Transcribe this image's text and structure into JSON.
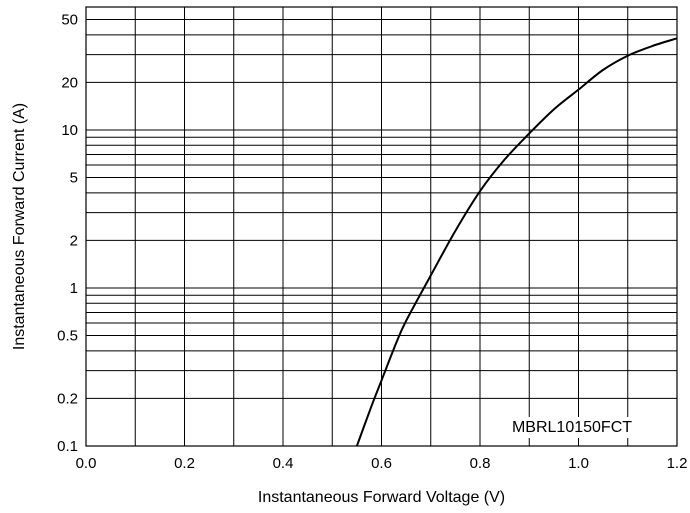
{
  "chart_data": {
    "type": "line",
    "title": "",
    "xlabel": "Instantaneous Forward Voltage (V)",
    "ylabel": "Instantaneous Forward Current (A)",
    "xlim": [
      0.0,
      1.2
    ],
    "ylim": [
      0.1,
      60
    ],
    "yscale": "log",
    "grid": true,
    "x_ticks": [
      {
        "value": 0.0,
        "label": "0.0"
      },
      {
        "value": 0.2,
        "label": "0.2"
      },
      {
        "value": 0.4,
        "label": "0.4"
      },
      {
        "value": 0.6,
        "label": "0.6"
      },
      {
        "value": 0.8,
        "label": "0.8"
      },
      {
        "value": 1.0,
        "label": "1.0"
      },
      {
        "value": 1.2,
        "label": "1.2"
      }
    ],
    "x_grid": [
      0.1,
      0.2,
      0.3,
      0.4,
      0.5,
      0.6,
      0.7,
      0.8,
      0.9,
      1.0,
      1.1
    ],
    "y_ticks": [
      {
        "value": 0.1,
        "label": "0.1"
      },
      {
        "value": 0.2,
        "label": "0.2"
      },
      {
        "value": 0.5,
        "label": "0.5"
      },
      {
        "value": 1,
        "label": "1"
      },
      {
        "value": 2,
        "label": "2"
      },
      {
        "value": 5,
        "label": "5"
      },
      {
        "value": 10,
        "label": "10"
      },
      {
        "value": 20,
        "label": "20"
      },
      {
        "value": 50,
        "label": "50"
      }
    ],
    "y_grid": [
      0.2,
      0.3,
      0.4,
      0.5,
      0.6,
      0.7,
      0.8,
      0.9,
      1,
      2,
      3,
      4,
      5,
      6,
      7,
      8,
      9,
      10,
      20,
      30,
      40,
      50
    ],
    "series": [
      {
        "name": "",
        "x": [
          0.55,
          0.58,
          0.6,
          0.63,
          0.65,
          0.7,
          0.75,
          0.8,
          0.85,
          0.9,
          0.95,
          1.0,
          1.05,
          1.1,
          1.15,
          1.2
        ],
        "y": [
          0.1,
          0.18,
          0.26,
          0.45,
          0.62,
          1.2,
          2.3,
          4.1,
          6.5,
          9.5,
          13.5,
          18,
          24,
          29.5,
          34,
          38
        ]
      }
    ],
    "annotations": [
      {
        "text": "MBRL10150FCT",
        "position": "bottom-right"
      }
    ]
  }
}
